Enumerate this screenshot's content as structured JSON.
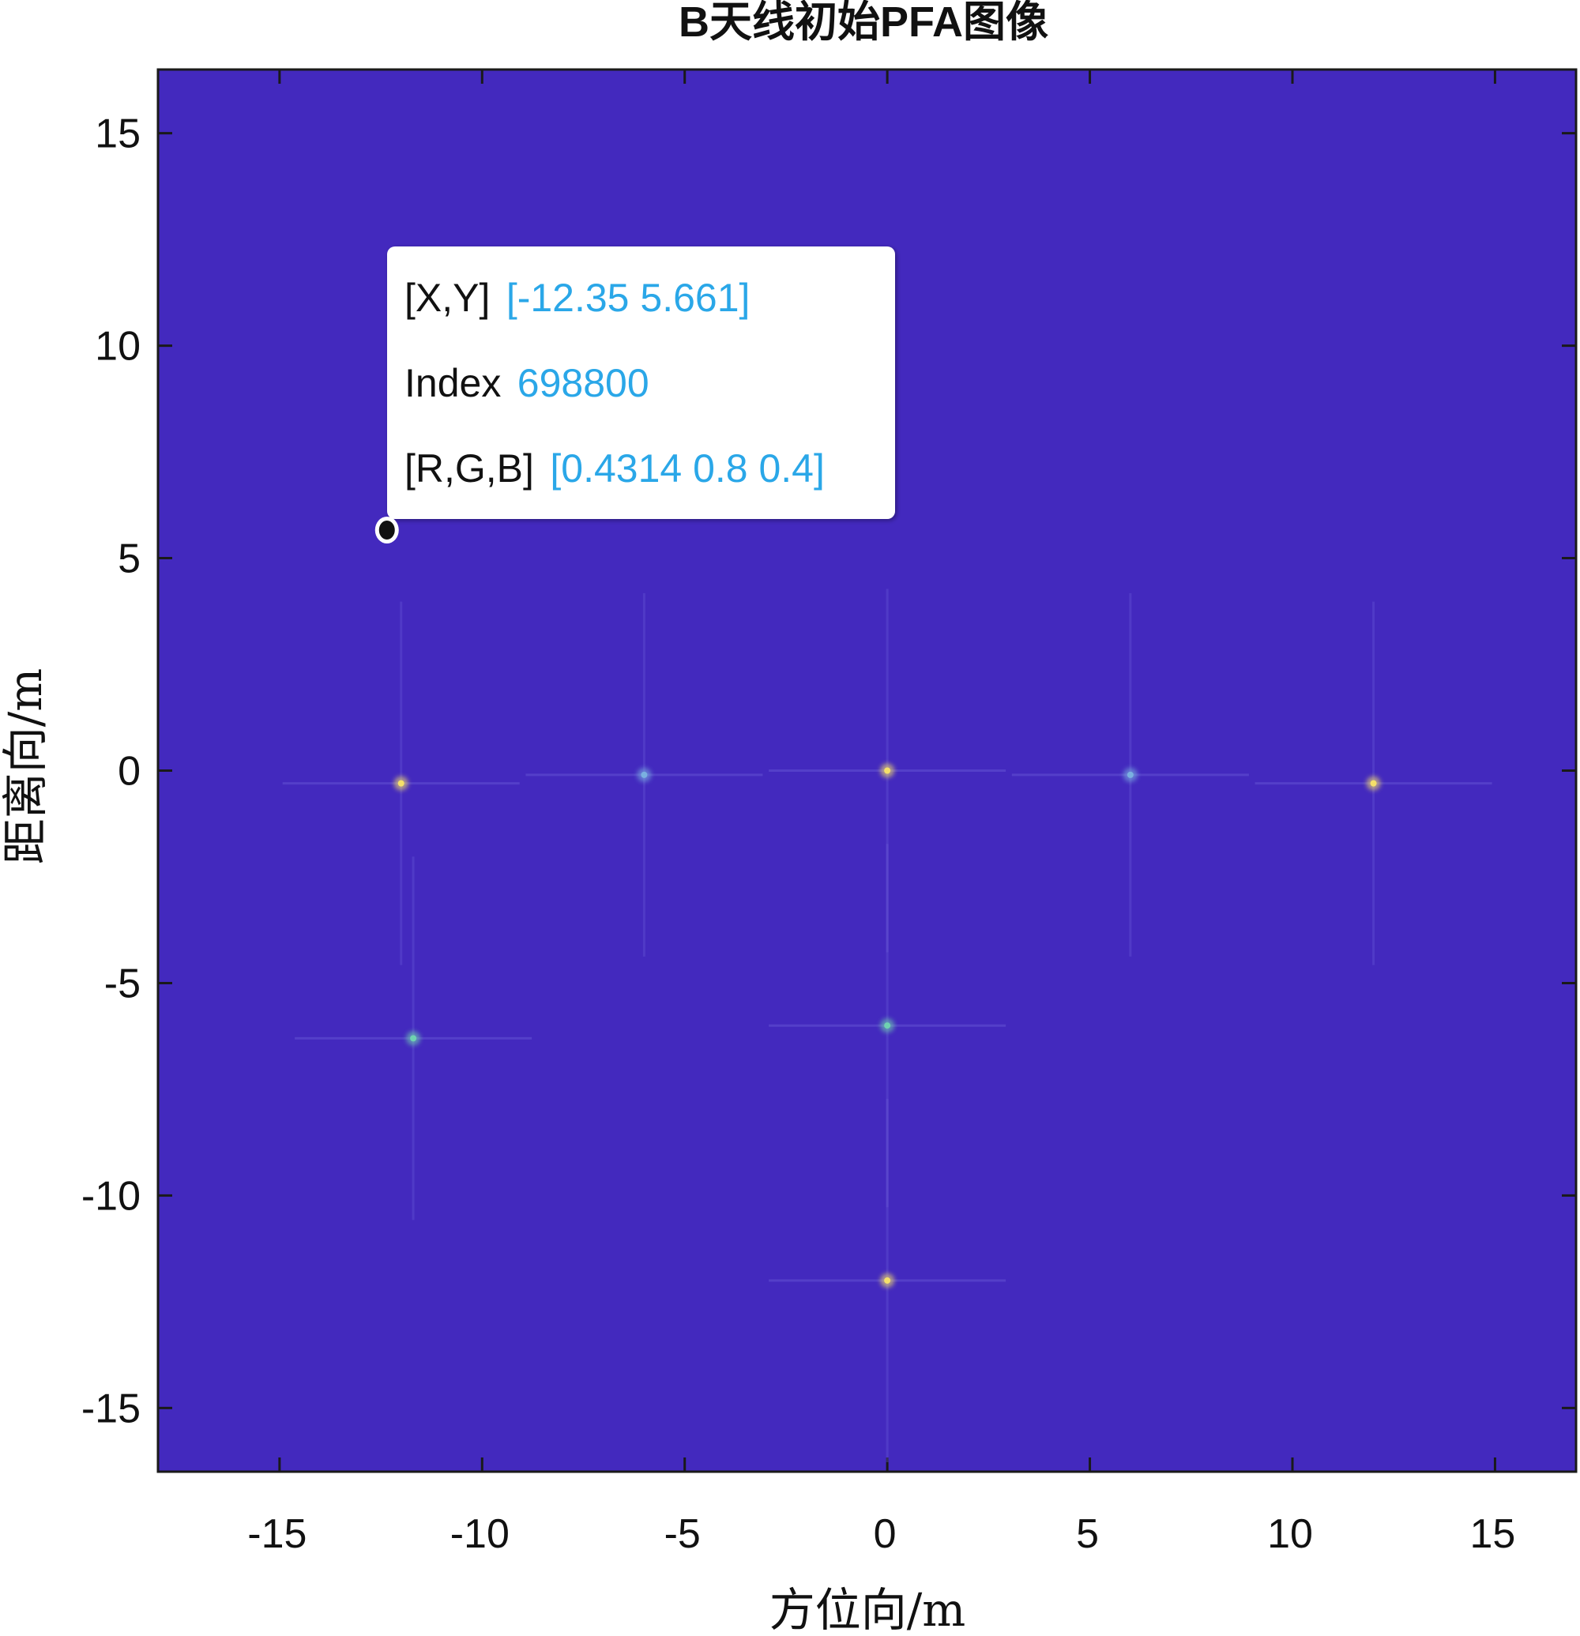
{
  "chart_data": {
    "type": "heatmap",
    "title": "B天线初始PFA图像",
    "xlabel": "方位向/m",
    "ylabel": "距离向/m",
    "xlim": [
      -18,
      17
    ],
    "ylim": [
      -16.5,
      16.5
    ],
    "xticks": [
      -15,
      -10,
      -5,
      0,
      5,
      10,
      15
    ],
    "yticks": [
      15,
      10,
      5,
      0,
      -5,
      -10,
      -15
    ],
    "xtick_labels": [
      "-15",
      "-10",
      "-5",
      "0",
      "5",
      "10",
      "15"
    ],
    "ytick_labels": [
      "15",
      "10",
      "5",
      "0",
      "-5",
      "-10",
      "-15"
    ],
    "background_color": "#4329BE",
    "point_targets": [
      {
        "x": -12,
        "y": -0.3,
        "color": "#f5e06a"
      },
      {
        "x": -6,
        "y": -0.1,
        "color": "#7ab0e0"
      },
      {
        "x": 0,
        "y": 0,
        "color": "#f5e06a"
      },
      {
        "x": 6,
        "y": -0.1,
        "color": "#7ab0e0"
      },
      {
        "x": 12,
        "y": -0.3,
        "color": "#f5e06a"
      },
      {
        "x": -11.7,
        "y": -6.3,
        "color": "#6fd2b0"
      },
      {
        "x": 0,
        "y": -6,
        "color": "#6fd2b0"
      },
      {
        "x": 0,
        "y": -12,
        "color": "#f5e06a"
      }
    ],
    "datatip": {
      "x": -12.35,
      "y": 5.661,
      "rows": [
        {
          "key": "[X,Y]",
          "value": "[-12.35 5.661]"
        },
        {
          "key": "Index",
          "value": "698800"
        },
        {
          "key": "[R,G,B]",
          "value": "[0.4314 0.8 0.4]"
        }
      ]
    }
  }
}
